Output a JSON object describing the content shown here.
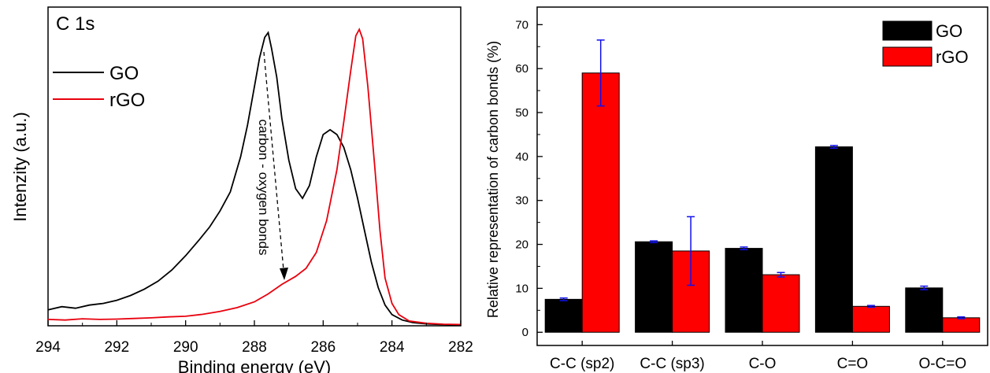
{
  "chart_data": [
    {
      "type": "line",
      "panel_label": "C 1s",
      "xlabel": "Binding energy (eV)",
      "ylabel": "Intenzity (a.u.)",
      "xlim": [
        294,
        282
      ],
      "ylim": [
        0,
        1.0
      ],
      "x_ticks": [
        294,
        292,
        290,
        288,
        286,
        284,
        282
      ],
      "legend_placement": "top-left",
      "annotation": "carbon - oxygen bonds",
      "series": [
        {
          "name": "GO",
          "color": "#000000",
          "x": [
            294,
            293.6,
            293.2,
            292.8,
            292.4,
            292.0,
            291.6,
            291.2,
            290.8,
            290.4,
            290.0,
            289.6,
            289.3,
            289.0,
            288.7,
            288.4,
            288.2,
            288.0,
            287.85,
            287.7,
            287.6,
            287.5,
            287.35,
            287.2,
            287.0,
            286.8,
            286.6,
            286.4,
            286.2,
            286.0,
            285.8,
            285.6,
            285.4,
            285.2,
            285.0,
            284.8,
            284.6,
            284.4,
            284.2,
            284.0,
            283.7,
            283.4,
            283.0,
            282.6,
            282.0
          ],
          "y": [
            0.05,
            0.06,
            0.055,
            0.065,
            0.07,
            0.08,
            0.095,
            0.115,
            0.14,
            0.175,
            0.22,
            0.27,
            0.31,
            0.36,
            0.42,
            0.53,
            0.63,
            0.75,
            0.84,
            0.905,
            0.92,
            0.87,
            0.78,
            0.65,
            0.52,
            0.43,
            0.4,
            0.44,
            0.53,
            0.6,
            0.615,
            0.6,
            0.56,
            0.49,
            0.4,
            0.3,
            0.2,
            0.12,
            0.065,
            0.035,
            0.018,
            0.01,
            0.006,
            0.004,
            0.003
          ]
        },
        {
          "name": "rGO",
          "color": "#e8000d",
          "x": [
            294,
            293.5,
            293.0,
            292.5,
            292.0,
            291.5,
            291.0,
            290.5,
            290.0,
            289.5,
            289.0,
            288.5,
            288.0,
            287.6,
            287.2,
            286.8,
            286.5,
            286.2,
            285.9,
            285.6,
            285.4,
            285.2,
            285.05,
            284.95,
            284.85,
            284.7,
            284.5,
            284.35,
            284.2,
            284.0,
            283.8,
            283.5,
            283.0,
            282.5,
            282.0
          ],
          "y": [
            0.02,
            0.018,
            0.022,
            0.02,
            0.021,
            0.023,
            0.025,
            0.028,
            0.03,
            0.036,
            0.045,
            0.057,
            0.075,
            0.1,
            0.13,
            0.155,
            0.18,
            0.23,
            0.33,
            0.49,
            0.64,
            0.8,
            0.91,
            0.93,
            0.9,
            0.75,
            0.5,
            0.3,
            0.15,
            0.07,
            0.035,
            0.015,
            0.008,
            0.005,
            0.004
          ]
        }
      ]
    },
    {
      "type": "bar",
      "ylabel": "Relative representation of carbon bonds (%)",
      "ylim": [
        -3,
        74
      ],
      "y_ticks": [
        0,
        10,
        20,
        30,
        40,
        50,
        60,
        70
      ],
      "legend_placement": "top-right",
      "categories": [
        "C-C (sp2)",
        "C-C (sp3)",
        "C-O",
        "C=O",
        "O-C=O"
      ],
      "series": [
        {
          "name": "GO",
          "color": "#000000",
          "values": [
            7.5,
            20.6,
            19.1,
            42.2,
            10.1
          ],
          "errors": [
            0.3,
            0.2,
            0.3,
            0.3,
            0.4
          ]
        },
        {
          "name": "rGO",
          "color": "#ff0000",
          "values": [
            59.0,
            18.5,
            13.1,
            5.9,
            3.3
          ],
          "errors": [
            7.5,
            7.8,
            0.5,
            0.2,
            0.2
          ]
        }
      ]
    }
  ]
}
